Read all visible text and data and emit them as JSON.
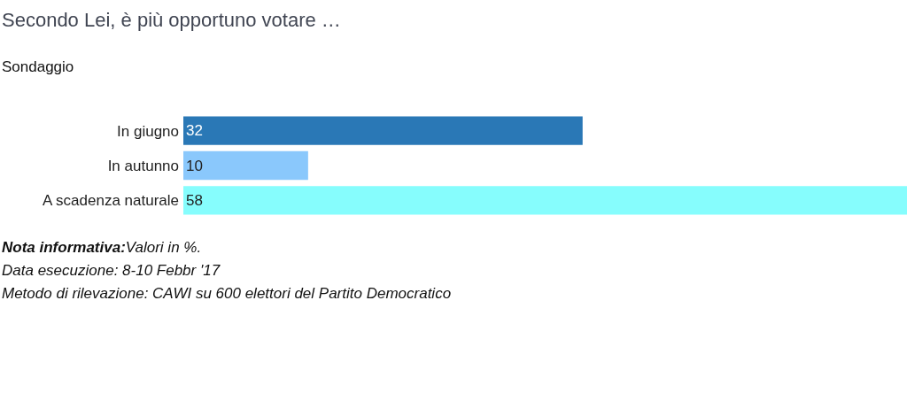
{
  "chart_data": {
    "type": "bar",
    "orientation": "horizontal",
    "title": "Secondo Lei, è più opportuno votare …",
    "subtitle": "Sondaggio",
    "categories": [
      "In giugno",
      "In autunno",
      "A scadenza naturale"
    ],
    "values": [
      32,
      10,
      58
    ],
    "colors": [
      "#2a78b6",
      "#8ac8fc",
      "#86fdfd"
    ],
    "data_labels": true,
    "legend": false,
    "annotations": [
      "Nota informativa:Valori in %.",
      "Data esecuzione: 8-10 Febbr '17",
      "Metodo di rilevazione: CAWI su 600 elettori del Partito Democratico"
    ]
  }
}
